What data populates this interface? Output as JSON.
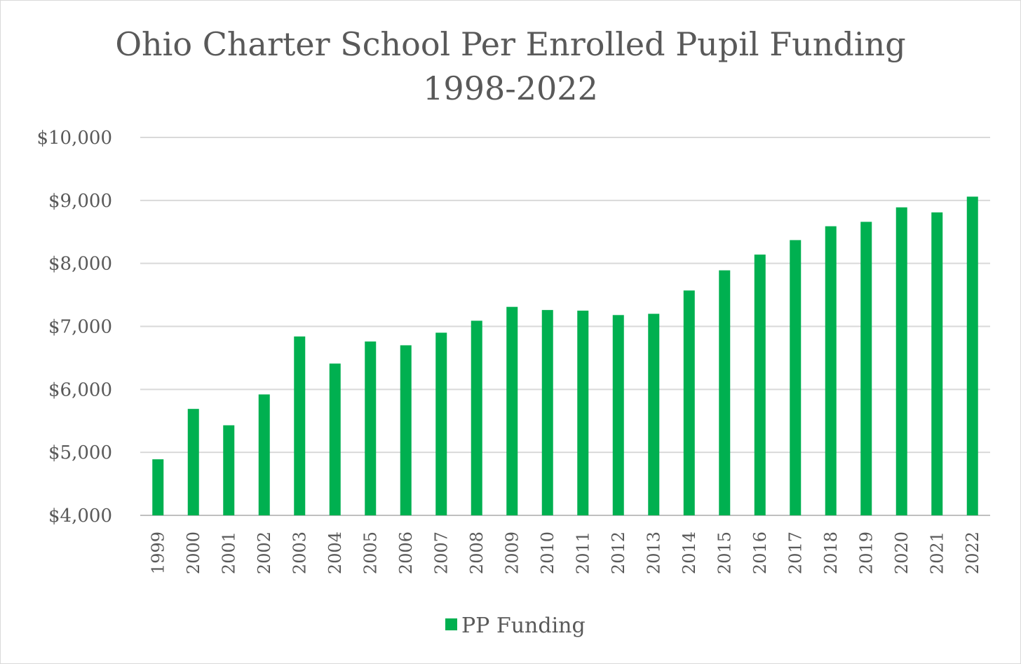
{
  "chart_data": {
    "type": "bar",
    "title": "Ohio Charter School Per Enrolled Pupil Funding",
    "subtitle": "1998-2022",
    "xlabel": "",
    "ylabel": "",
    "categories": [
      "1999",
      "2000",
      "2001",
      "2002",
      "2003",
      "2004",
      "2005",
      "2006",
      "2007",
      "2008",
      "2009",
      "2010",
      "2011",
      "2012",
      "2013",
      "2014",
      "2015",
      "2016",
      "2017",
      "2018",
      "2019",
      "2020",
      "2021",
      "2022"
    ],
    "series": [
      {
        "name": "PP Funding",
        "color": "#00b050",
        "values": [
          4890,
          5690,
          5430,
          5920,
          6840,
          6410,
          6760,
          6700,
          6900,
          7090,
          7310,
          7260,
          7250,
          7180,
          7200,
          7570,
          7890,
          8140,
          8370,
          8590,
          8660,
          8890,
          8810,
          9060
        ]
      }
    ],
    "ylim": [
      4000,
      10000
    ],
    "yticks": [
      4000,
      5000,
      6000,
      7000,
      8000,
      9000,
      10000
    ],
    "ytick_labels": [
      "$4,000",
      "$5,000",
      "$6,000",
      "$7,000",
      "$8,000",
      "$9,000",
      "$10,000"
    ],
    "grid": true,
    "legend_position": "bottom",
    "colors": {
      "bar": "#00b050",
      "grid": "#d9d9d9",
      "text": "#595959",
      "axis": "#bfbfbf"
    }
  }
}
